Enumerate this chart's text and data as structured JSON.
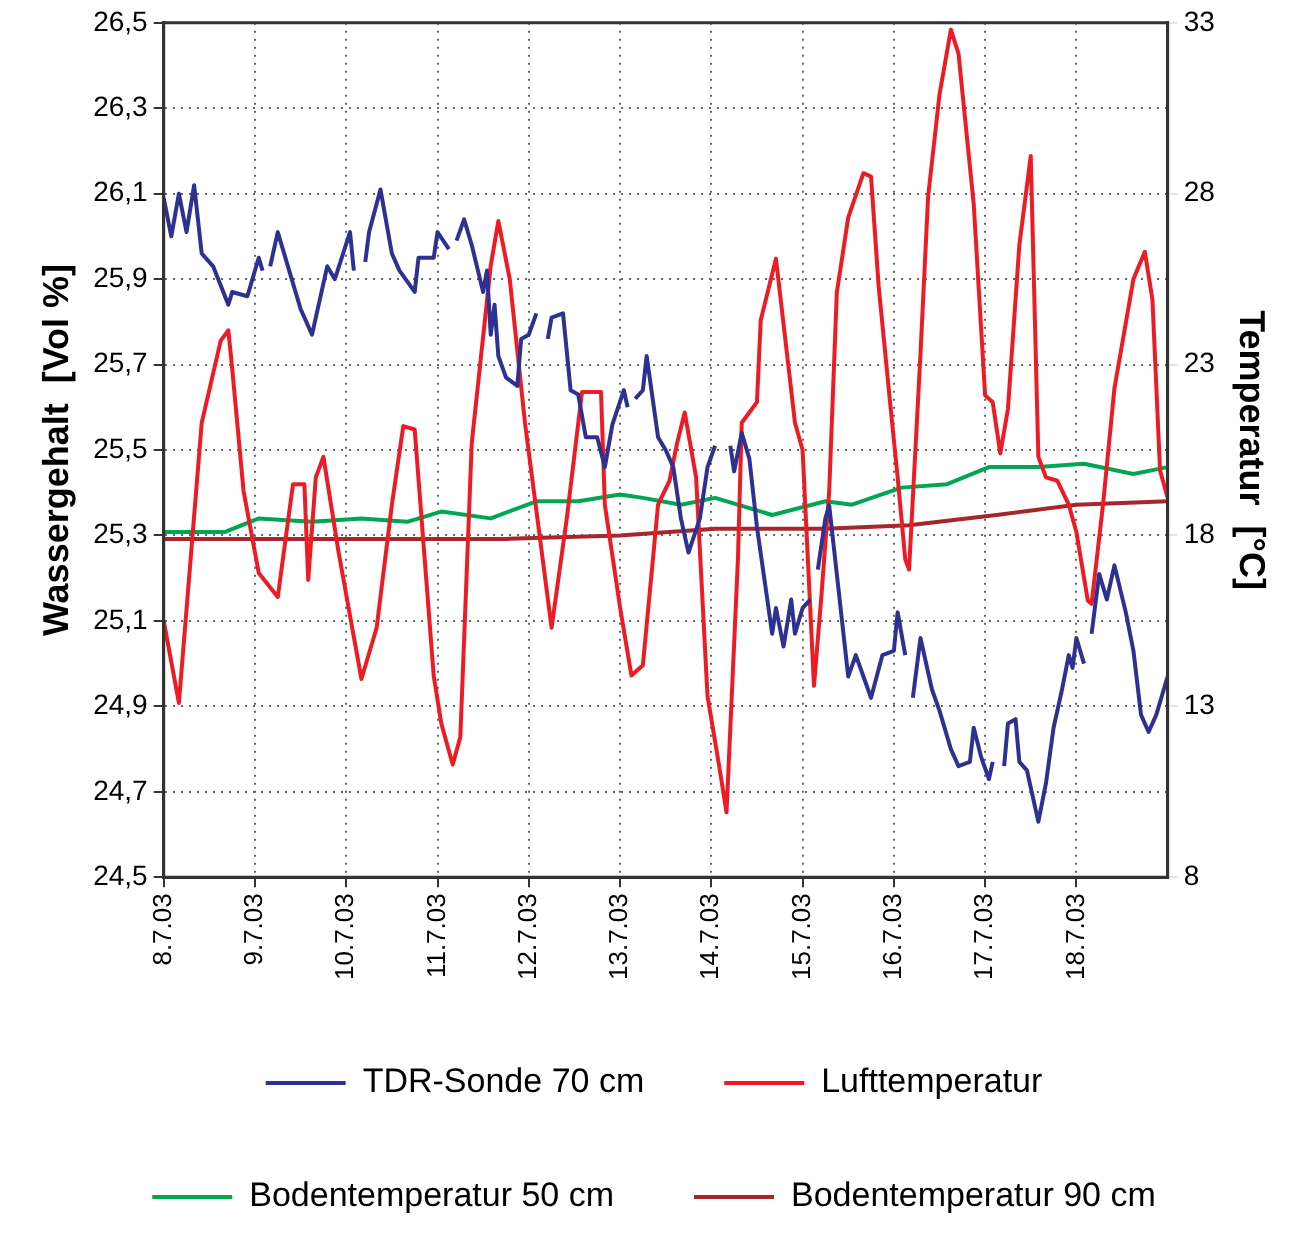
{
  "chart_data": {
    "type": "line",
    "ylabel": "Wassergehalt  [Vol %]",
    "y2label": "Temperatur  [°C]",
    "legend": "bottom",
    "grid": true,
    "marker": "none",
    "xlim": [
      "--07-08",
      "--07-19"
    ],
    "xticks": [
      {
        "value": "--07-08",
        "label": "8.7.03"
      },
      {
        "value": "--07-09",
        "label": "9.7.03"
      },
      {
        "value": "--07-10",
        "label": "10.7.03"
      },
      {
        "value": "--07-11",
        "label": "11.7.03"
      },
      {
        "value": "--07-12",
        "label": "12.7.03"
      },
      {
        "value": "--07-13",
        "label": "13.7.03"
      },
      {
        "value": "--07-14",
        "label": "14.7.03"
      },
      {
        "value": "--07-15",
        "label": "15.7.03"
      },
      {
        "value": "--07-16",
        "label": "16.7.03"
      },
      {
        "value": "--07-17",
        "label": "17.7.03"
      },
      {
        "value": "--07-18",
        "label": "18.7.03"
      }
    ],
    "ylim": [
      24.5,
      26.5
    ],
    "yticks": [
      {
        "value": 24.5,
        "label": "24,5"
      },
      {
        "value": 24.7,
        "label": "24,7"
      },
      {
        "value": 24.9,
        "label": "24,9"
      },
      {
        "value": 25.1,
        "label": "25,1"
      },
      {
        "value": 25.3,
        "label": "25,3"
      },
      {
        "value": 25.5,
        "label": "25,5"
      },
      {
        "value": 25.7,
        "label": "25,7"
      },
      {
        "value": 25.9,
        "label": "25,9"
      },
      {
        "value": 26.1,
        "label": "26,1"
      },
      {
        "value": 26.3,
        "label": "26,3"
      },
      {
        "value": 26.5,
        "label": "26,5"
      }
    ],
    "y2lim": [
      8,
      33
    ],
    "y2ticks": [
      8,
      13,
      18,
      23,
      28,
      33
    ],
    "series": [
      {
        "name": "TDR-Sonde 70 cm",
        "color": "#2e3192",
        "x": [
          "--07-08T00:00",
          "--07-08T02:00",
          "--07-08T04:00",
          "--07-08T06:00",
          "--07-08T08:00",
          "--07-08T10:00",
          "--07-08T13:00",
          "--07-08T17:00",
          "--07-08T18:00",
          "--07-08T22:00",
          "--07-09T01:00",
          "--07-09T02:00",
          "--07-09T03:00",
          "--07-09T04:00",
          "--07-09T06:00",
          "--07-09T09:00",
          "--07-09T12:00",
          "--07-09T15:00",
          "--07-09T19:00",
          "--07-09T21:00",
          "--07-10T01:00",
          "--07-10T02:00",
          "--07-10T03:00",
          "--07-10T05:00",
          "--07-10T06:00",
          "--07-10T09:00",
          "--07-10T12:00",
          "--07-10T14:00",
          "--07-10T18:00",
          "--07-10T19:00",
          "--07-10T23:00",
          "--07-11T00:00",
          "--07-11T03:00",
          "--07-11T04:00",
          "--07-11T05:00",
          "--07-11T07:00",
          "--07-11T09:00",
          "--07-11T12:00",
          "--07-11T13:00",
          "--07-11T14:00",
          "--07-11T15:00",
          "--07-11T16:00",
          "--07-11T18:00",
          "--07-11T21:00",
          "--07-11T22:00",
          "--07-12T00:00",
          "--07-12T02:00",
          "--07-12T03:00",
          "--07-12T05:00",
          "--07-12T06:00",
          "--07-12T09:00",
          "--07-12T11:00",
          "--07-12T13:00",
          "--07-12T15:00",
          "--07-12T18:00",
          "--07-12T20:00",
          "--07-12T22:00",
          "--07-13T01:00",
          "--07-13T02:00",
          "--07-13T03:00",
          "--07-13T04:00",
          "--07-13T06:00",
          "--07-13T07:00",
          "--07-13T10:00",
          "--07-13T12:00",
          "--07-13T14:00",
          "--07-13T16:00",
          "--07-13T18:00",
          "--07-13T21:00",
          "--07-13T23:00",
          "--07-14T01:00",
          "--07-14T03:00",
          "--07-14T05:00",
          "--07-14T06:00",
          "--07-14T08:00",
          "--07-14T10:00",
          "--07-14T12:00",
          "--07-14T16:00",
          "--07-14T17:00",
          "--07-14T19:00",
          "--07-14T21:00",
          "--07-14T22:00",
          "--07-15T00:00",
          "--07-15T02:00",
          "--07-15T03:00",
          "--07-15T04:00",
          "--07-15T06:00",
          "--07-15T07:00",
          "--07-15T09:00",
          "--07-15T12:00",
          "--07-15T14:00",
          "--07-15T16:00",
          "--07-15T18:00",
          "--07-15T21:00",
          "--07-16T00:00",
          "--07-16T01:00",
          "--07-16T03:00",
          "--07-16T04:00",
          "--07-16T05:00",
          "--07-16T07:00",
          "--07-16T10:00",
          "--07-16T12:00",
          "--07-16T15:00",
          "--07-16T17:00",
          "--07-16T20:00",
          "--07-16T21:00",
          "--07-16T23:00",
          "--07-17T01:00",
          "--07-17T02:00",
          "--07-17T04:00",
          "--07-17T05:00",
          "--07-17T06:00",
          "--07-17T08:00",
          "--07-17T09:00",
          "--07-17T11:00",
          "--07-17T13:00",
          "--07-17T14:00",
          "--07-17T16:00",
          "--07-17T18:00",
          "--07-17T20:00",
          "--07-17T22:00",
          "--07-17T23:00",
          "--07-18T00:00",
          "--07-18T02:00",
          "--07-18T03:00",
          "--07-18T04:00",
          "--07-18T06:00",
          "--07-18T08:00",
          "--07-18T10:00",
          "--07-18T13:00",
          "--07-18T15:00",
          "--07-18T17:00",
          "--07-18T19:00",
          "--07-18T21:00",
          "--07-19T00:00"
        ],
        "values": [
          26.09,
          26.0,
          26.1,
          26.01,
          26.12,
          25.96,
          25.93,
          25.84,
          25.87,
          25.86,
          25.95,
          25.92,
          null,
          25.93,
          26.01,
          25.92,
          25.83,
          25.77,
          25.93,
          25.9,
          26.01,
          25.92,
          null,
          25.94,
          26.01,
          26.11,
          25.96,
          25.92,
          25.87,
          25.95,
          25.95,
          26.01,
          25.97,
          null,
          25.99,
          26.04,
          25.98,
          25.87,
          25.92,
          25.77,
          25.84,
          25.72,
          25.67,
          25.65,
          25.76,
          25.77,
          25.82,
          null,
          25.76,
          25.81,
          25.82,
          25.64,
          25.63,
          25.53,
          25.53,
          25.46,
          25.56,
          25.64,
          25.6,
          null,
          25.62,
          25.64,
          25.72,
          25.53,
          25.5,
          25.46,
          25.34,
          25.26,
          25.34,
          25.46,
          25.51,
          null,
          25.51,
          25.45,
          25.54,
          25.48,
          25.32,
          25.07,
          25.13,
          25.04,
          25.15,
          25.07,
          25.13,
          25.15,
          null,
          25.22,
          25.34,
          25.37,
          25.21,
          24.97,
          25.02,
          24.97,
          24.92,
          25.02,
          25.03,
          25.12,
          25.02,
          null,
          24.92,
          25.06,
          24.94,
          24.89,
          24.8,
          24.76,
          24.77,
          24.85,
          24.78,
          24.73,
          24.77,
          null,
          24.76,
          24.86,
          24.87,
          24.77,
          24.75,
          24.67,
          24.63,
          24.72,
          24.85,
          24.93,
          25.02,
          24.99,
          25.06,
          25.0,
          null,
          25.07,
          25.21,
          25.15,
          25.23,
          25.12,
          25.03,
          24.88,
          24.84,
          24.88,
          24.97
        ]
      },
      {
        "name": "Lufttemperatur",
        "color": "#ed1c24",
        "axis": "y2",
        "x": [
          "--07-08T00:00",
          "--07-08T04:00",
          "--07-08T10:00",
          "--07-08T15:00",
          "--07-08T17:00",
          "--07-08T18:00",
          "--07-08T21:00",
          "--07-09T01:00",
          "--07-09T06:00",
          "--07-09T10:00",
          "--07-09T13:00",
          "--07-09T14:00",
          "--07-09T16:00",
          "--07-09T18:00",
          "--07-09T22:00",
          "--07-10T04:00",
          "--07-10T08:00",
          "--07-10T12:00",
          "--07-10T15:00",
          "--07-10T18:00",
          "--07-10T23:00",
          "--07-11T01:00",
          "--07-11T04:00",
          "--07-11T06:00",
          "--07-11T09:00",
          "--07-11T14:00",
          "--07-11T16:00",
          "--07-11T19:00",
          "--07-11T23:00",
          "--07-12T06:00",
          "--07-12T10:00",
          "--07-12T14:00",
          "--07-12T19:00",
          "--07-12T20:00",
          "--07-13T00:00",
          "--07-13T03:00",
          "--07-13T06:00",
          "--07-13T10:00",
          "--07-13T13:00",
          "--07-13T15:00",
          "--07-13T17:00",
          "--07-13T20:00",
          "--07-13T23:00",
          "--07-14T02:00",
          "--07-14T04:00",
          "--07-14T07:00",
          "--07-14T08:00",
          "--07-14T12:00",
          "--07-14T13:00",
          "--07-14T17:00",
          "--07-14T22:00",
          "--07-15T00:00",
          "--07-15T03:00",
          "--07-15T05:00",
          "--07-15T07:00",
          "--07-15T09:00",
          "--07-15T12:00",
          "--07-15T16:00",
          "--07-15T18:00",
          "--07-15T20:00",
          "--07-15T23:00",
          "--07-16T01:00",
          "--07-16T03:00",
          "--07-16T04:00",
          "--07-16T07:00",
          "--07-16T09:00",
          "--07-16T12:00",
          "--07-16T15:00",
          "--07-16T17:00",
          "--07-16T21:00",
          "--07-17T00:00",
          "--07-17T02:00",
          "--07-17T04:00",
          "--07-17T06:00",
          "--07-17T09:00",
          "--07-17T12:00",
          "--07-17T14:00",
          "--07-17T16:00",
          "--07-17T19:00",
          "--07-17T22:00",
          "--07-18T00:00",
          "--07-18T03:00",
          "--07-18T04:00",
          "--07-18T07:00",
          "--07-18T10:00",
          "--07-18T15:00",
          "--07-18T18:00",
          "--07-18T20:00",
          "--07-18T22:00",
          "--07-19T00:00"
        ],
        "values": [
          15.5,
          13.1,
          21.3,
          23.7,
          24.0,
          22.9,
          19.3,
          16.9,
          16.2,
          19.5,
          19.5,
          16.7,
          19.7,
          20.3,
          17.5,
          13.8,
          15.3,
          18.9,
          21.2,
          21.1,
          13.9,
          12.5,
          11.3,
          12.1,
          20.7,
          25.9,
          27.2,
          25.5,
          21.3,
          15.3,
          18.5,
          22.2,
          22.2,
          18.9,
          15.9,
          13.9,
          14.2,
          18.9,
          19.6,
          20.7,
          21.6,
          19.7,
          13.3,
          11.3,
          9.9,
          17.3,
          21.3,
          21.9,
          24.3,
          26.1,
          21.3,
          20.5,
          13.6,
          16.3,
          19.3,
          25.1,
          27.3,
          28.6,
          28.5,
          25.3,
          21.9,
          19.7,
          17.3,
          17.0,
          23.3,
          27.9,
          30.9,
          32.8,
          32.1,
          27.7,
          22.1,
          21.9,
          20.4,
          21.7,
          26.5,
          29.1,
          20.3,
          19.7,
          19.6,
          18.9,
          18.1,
          16.1,
          16.0,
          18.9,
          22.3,
          25.5,
          26.3,
          24.9,
          19.9,
          19.1
        ]
      },
      {
        "name": "Bodentemperatur 50 cm",
        "color": "#00a651",
        "axis": "y2",
        "x": [
          "--07-08T00:00",
          "--07-08T16:00",
          "--07-09T01:00",
          "--07-09T15:00",
          "--07-10T04:00",
          "--07-10T16:00",
          "--07-11T01:00",
          "--07-11T14:00",
          "--07-12T02:00",
          "--07-12T13:00",
          "--07-13T00:00",
          "--07-13T06:00",
          "--07-13T16:00",
          "--07-14T01:00",
          "--07-14T16:00",
          "--07-15T06:00",
          "--07-15T13:00",
          "--07-16T02:00",
          "--07-16T14:00",
          "--07-17T01:00",
          "--07-17T14:00",
          "--07-18T02:00",
          "--07-18T15:00",
          "--07-19T00:00"
        ],
        "values": [
          18.1,
          18.1,
          18.5,
          18.4,
          18.5,
          18.4,
          18.7,
          18.5,
          19.0,
          19.0,
          19.2,
          19.1,
          18.9,
          19.1,
          18.6,
          19.0,
          18.9,
          19.4,
          19.5,
          20.0,
          20.0,
          20.1,
          19.8,
          20.0
        ]
      },
      {
        "name": "Bodentemperatur 90 cm",
        "color": "#a6262d",
        "axis": "y2",
        "x": [
          "--07-08T00:00",
          "--07-10T12:00",
          "--07-11T18:00",
          "--07-13T00:00",
          "--07-14T01:00",
          "--07-15T06:00",
          "--07-16T04:00",
          "--07-17T03:00",
          "--07-18T00:00",
          "--07-19T00:00"
        ],
        "values": [
          17.9,
          17.9,
          17.9,
          18.0,
          18.2,
          18.2,
          18.3,
          18.6,
          18.9,
          19.0
        ]
      }
    ]
  }
}
